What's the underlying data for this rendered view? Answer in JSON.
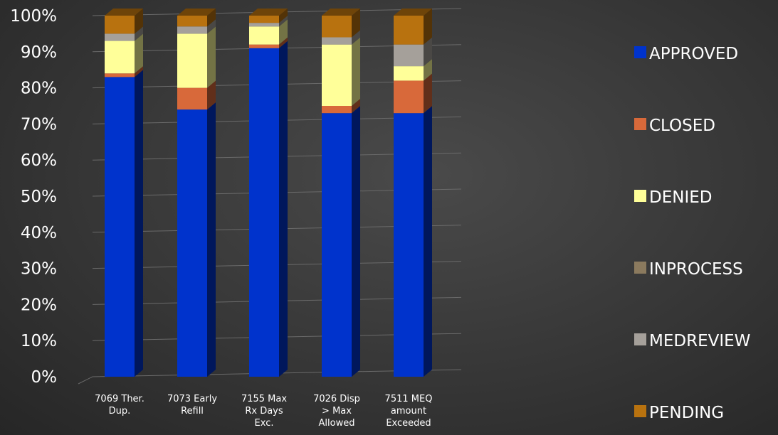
{
  "chart_data": {
    "type": "bar",
    "stacked": true,
    "percent": true,
    "three_d": true,
    "title": "",
    "xlabel": "",
    "ylabel": "",
    "ylim": [
      0,
      100
    ],
    "y_ticks": [
      "0%",
      "10%",
      "20%",
      "30%",
      "40%",
      "50%",
      "60%",
      "70%",
      "80%",
      "90%",
      "100%"
    ],
    "grid": true,
    "legend_position": "right",
    "categories": [
      [
        "7069 Ther.",
        "Dup."
      ],
      [
        "7073 Early",
        "Refill"
      ],
      [
        "7155 Max",
        "Rx Days",
        "Exc."
      ],
      [
        "7026 Disp",
        "> Max",
        "Allowed"
      ],
      [
        "7511 MEQ",
        "amount",
        "Exceeded"
      ]
    ],
    "series": [
      {
        "name": "APPROVED",
        "color": "#0033cc",
        "values": [
          83,
          74,
          91,
          73,
          73
        ]
      },
      {
        "name": "CLOSED",
        "color": "#d8693a",
        "values": [
          1,
          6,
          1,
          2,
          9
        ]
      },
      {
        "name": "DENIED",
        "color": "#ffff99",
        "values": [
          9,
          15,
          5,
          17,
          4
        ]
      },
      {
        "name": "INPROCESS",
        "color": "#8b7a5e",
        "values": [
          0,
          0,
          0,
          0,
          0
        ]
      },
      {
        "name": "MEDREVIEW",
        "color": "#a5a09a",
        "values": [
          2,
          2,
          1,
          2,
          6
        ]
      },
      {
        "name": "PENDING",
        "color": "#b8720f",
        "values": [
          5,
          3,
          2,
          6,
          8
        ]
      }
    ]
  }
}
